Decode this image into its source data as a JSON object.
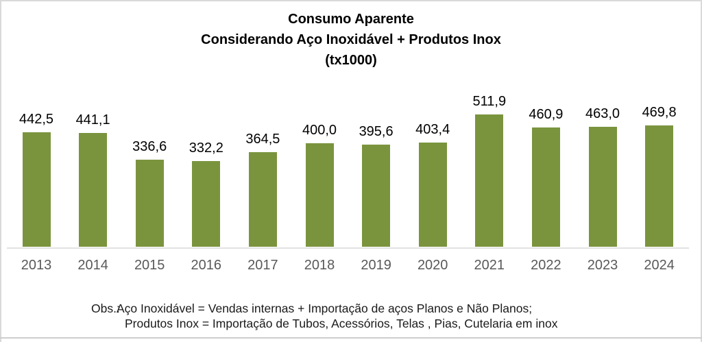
{
  "chart_data": {
    "type": "bar",
    "title_lines": [
      "Consumo Aparente",
      "Considerando Aço Inoxidável + Produtos Inox",
      "(tx1000)"
    ],
    "categories": [
      "2013",
      "2014",
      "2015",
      "2016",
      "2017",
      "2018",
      "2019",
      "2020",
      "2021",
      "2022",
      "2023",
      "2024"
    ],
    "values": [
      442.5,
      441.1,
      336.6,
      332.2,
      364.5,
      400.0,
      395.6,
      403.4,
      511.9,
      460.9,
      463.0,
      469.8
    ],
    "value_labels": [
      "442,5",
      "441,1",
      "336,6",
      "332,2",
      "364,5",
      "400,0",
      "395,6",
      "403,4",
      "511,9",
      "460,9",
      "463,0",
      "469,8"
    ],
    "xlabel": "",
    "ylabel": "",
    "ylim": [
      0,
      550
    ],
    "grid": false,
    "legend": "none",
    "data_labels": "above-bars",
    "bar_color": "#7a943e",
    "value_label_color": "#000000",
    "category_label_color": "#595959",
    "axis_line_color": "#e2e2e2"
  },
  "notes": {
    "prefix": "Obs.:",
    "line1": "Aço Inoxidável = Vendas internas + Importação de aços Planos e Não Planos;",
    "line2": "Produtos Inox =  Importação de Tubos, Acessórios, Telas , Pias, Cutelaria em inox"
  }
}
